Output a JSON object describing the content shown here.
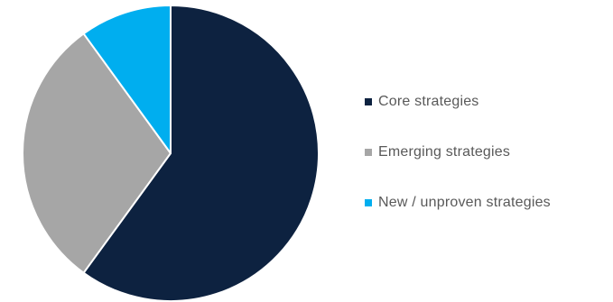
{
  "chart_data": {
    "type": "pie",
    "title": "",
    "categories": [
      "Core strategies",
      "Emerging strategies",
      "New / unproven strategies"
    ],
    "values": [
      60,
      30,
      10
    ],
    "colors": [
      "#0d2240",
      "#a6a6a6",
      "#00aeef"
    ],
    "slice_border_color": "#ffffff",
    "start_angle_deg": 0,
    "direction": "clockwise",
    "legend_position": "right"
  },
  "legend": {
    "items": [
      {
        "label": "Core strategies",
        "color": "#0d2240"
      },
      {
        "label": "Emerging strategies",
        "color": "#a6a6a6"
      },
      {
        "label": "New / unproven strategies",
        "color": "#00aeef"
      }
    ]
  }
}
